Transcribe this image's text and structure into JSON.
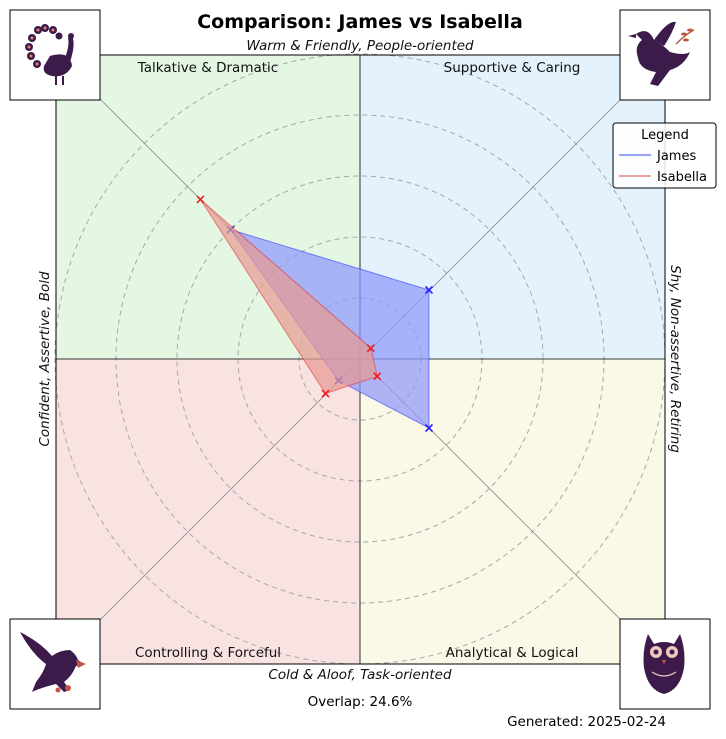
{
  "chart_data": {
    "type": "radar",
    "title": "Comparison: James vs Isabella",
    "top_label": "Warm & Friendly, People-oriented",
    "bottom_label": "Cold & Aloof, Task-oriented",
    "left_label": "Confident, Assertive, Bold",
    "right_label": "Shy, Non-assertive, Retiring",
    "quadrants": [
      {
        "name": "Talkative & Dramatic",
        "color": "#e3f7e3"
      },
      {
        "name": "Supportive & Caring",
        "color": "#e3f2fc"
      },
      {
        "name": "Controlling & Forceful",
        "color": "#f9e2e2"
      },
      {
        "name": "Analytical & Logical",
        "color": "#faf8e6"
      }
    ],
    "axes": [
      "Talkative & Dramatic",
      "Supportive & Caring",
      "Analytical & Logical",
      "Controlling & Forceful"
    ],
    "radial_max": 5,
    "series": [
      {
        "name": "James",
        "values": [
          3.0,
          1.6,
          1.6,
          0.5
        ],
        "color": "#2020ff",
        "fill": "#8f99fb"
      },
      {
        "name": "Isabella",
        "values": [
          3.7,
          0.25,
          0.4,
          0.8
        ],
        "color": "#ee1c1c",
        "fill": "#e79a93"
      }
    ],
    "grid": true,
    "legend": {
      "title": "Legend",
      "placement": "top-right"
    },
    "overlap_text": "Overlap: 24.6%",
    "generated_text": "Generated: 2025-02-24",
    "icons": [
      "peacock-icon",
      "dove-icon",
      "eagle-icon",
      "owl-icon"
    ]
  }
}
